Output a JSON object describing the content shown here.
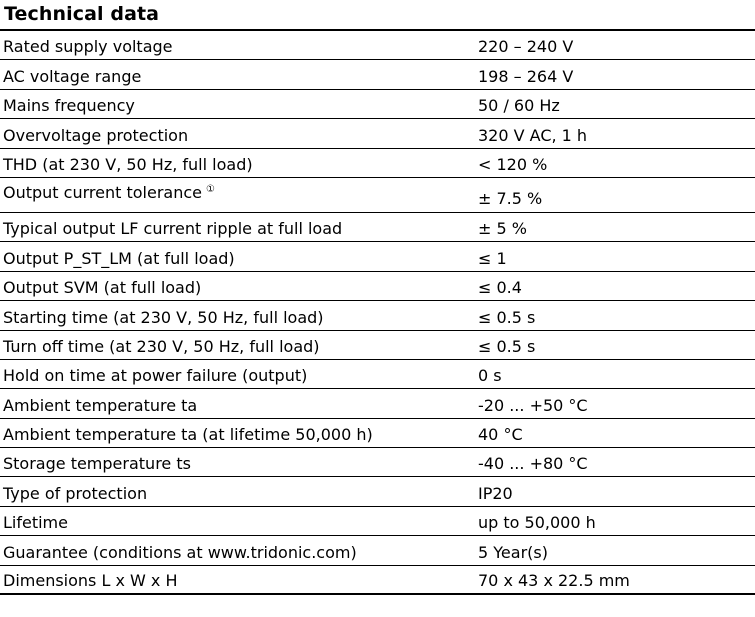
{
  "title": "Technical data",
  "rows": [
    {
      "label": "Rated supply voltage",
      "value": "220 – 240 V"
    },
    {
      "label": "AC voltage range",
      "value": "198 – 264 V"
    },
    {
      "label": "Mains frequency",
      "value": "50 / 60 Hz"
    },
    {
      "label": "Overvoltage protection",
      "value": "320 V AC, 1 h"
    },
    {
      "label": "THD (at 230 V, 50 Hz, full load)",
      "value": "< 120 %"
    },
    {
      "label": "Output current tolerance",
      "footnote": "①",
      "value": "± 7.5 %"
    },
    {
      "label": "Typical output LF current ripple at full load",
      "value": "± 5 %"
    },
    {
      "label": "Output P_ST_LM (at full load)",
      "value": "≤ 1"
    },
    {
      "label": "Output SVM (at full load)",
      "value": "≤ 0.4"
    },
    {
      "label": "Starting time (at 230 V, 50 Hz, full load)",
      "value": "≤ 0.5 s"
    },
    {
      "label": "Turn off time (at 230 V, 50 Hz, full load)",
      "value": "≤ 0.5 s"
    },
    {
      "label": "Hold on time at power failure (output)",
      "value": "0 s"
    },
    {
      "label": "Ambient temperature ta",
      "value": "-20 ... +50 °C"
    },
    {
      "label": "Ambient temperature ta (at lifetime 50,000 h)",
      "value": "40 °C"
    },
    {
      "label": "Storage temperature ts",
      "value": "-40 ... +80 °C"
    },
    {
      "label": "Type of protection",
      "value": "IP20"
    },
    {
      "label": "Lifetime",
      "value": "up to 50,000 h"
    },
    {
      "label": "Guarantee (conditions at www.tridonic.com)",
      "value": "5 Year(s)"
    },
    {
      "label": "Dimensions L x W x H",
      "value": "70 x 43 x 22.5 mm"
    }
  ]
}
